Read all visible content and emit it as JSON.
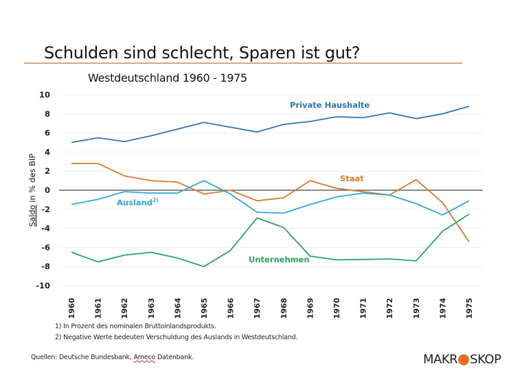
{
  "slide": {
    "title": "Schulden sind schlecht, Sparen ist gut?",
    "subtitle": "Westdeutschland 1960 - 1975",
    "footnotes": [
      "1) In Prozent des nominalen Bruttoinlandsprodukts.",
      "2) Negative Werte bedeuten Verschuldung des Auslands in Westdeutschland."
    ],
    "sources_prefix": "Quellen: Deutsche Bundesbank, ",
    "sources_spell": "Ameco",
    "sources_suffix": " Datenbank.",
    "logo_left": "MAKR",
    "logo_right": "SKOP",
    "accent_color": "#e2a57a",
    "logo_dot_color": "#f06a1f"
  },
  "chart_data": {
    "type": "line",
    "title": "Westdeutschland 1960 - 1975",
    "xlabel": "",
    "ylabel_spell": "Saldo",
    "ylabel_rest": " in % des BIP",
    "ylim": [
      -10,
      10
    ],
    "yticks": [
      10,
      8,
      6,
      4,
      2,
      0,
      -2,
      -4,
      -6,
      -8,
      -10
    ],
    "grid": true,
    "categories": [
      "1960",
      "1961",
      "1962",
      "1963",
      "1964",
      "1965",
      "1966",
      "1967",
      "1968",
      "1969",
      "1970",
      "1971",
      "1972",
      "1973",
      "1974",
      "1975"
    ],
    "series": [
      {
        "name": "Private Haushalte",
        "label": "Private Haushalte",
        "label_sup": "",
        "color": "#2e75b6",
        "values": [
          5.0,
          5.5,
          5.1,
          5.7,
          6.4,
          7.1,
          6.6,
          6.1,
          6.9,
          7.2,
          7.7,
          7.6,
          8.1,
          7.5,
          8.0,
          8.8
        ]
      },
      {
        "name": "Staat",
        "label": "Staat",
        "label_sup": "",
        "color": "#d9782d",
        "values": [
          2.8,
          2.8,
          1.5,
          1.0,
          0.85,
          -0.4,
          0.0,
          -1.1,
          -0.8,
          1.0,
          0.2,
          -0.15,
          -0.5,
          1.1,
          -1.3,
          -5.4
        ]
      },
      {
        "name": "Ausland",
        "label": "Ausland",
        "label_sup": "2)",
        "color": "#2eaadc",
        "values": [
          -1.5,
          -0.95,
          -0.15,
          -0.3,
          -0.3,
          1.0,
          -0.4,
          -2.3,
          -2.4,
          -1.5,
          -0.7,
          -0.3,
          -0.5,
          -1.4,
          -2.6,
          -1.1
        ]
      },
      {
        "name": "Unternehmen",
        "label": "Unternehmen",
        "label_sup": "",
        "color": "#24a564",
        "values": [
          -6.5,
          -7.5,
          -6.8,
          -6.5,
          -7.1,
          -8.0,
          -6.3,
          -2.9,
          -3.9,
          -6.9,
          -7.3,
          -7.25,
          -7.2,
          -7.4,
          -4.3,
          -2.5
        ]
      }
    ],
    "zero_line_color": "#444444"
  }
}
